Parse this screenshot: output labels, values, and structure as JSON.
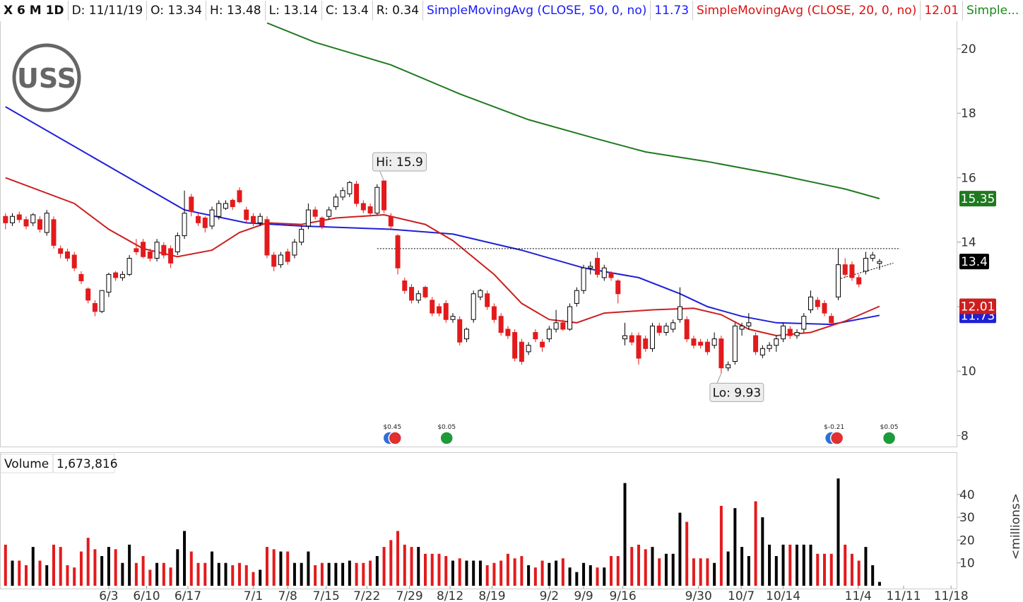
{
  "header": {
    "symbol": "X 6 M 1D",
    "date": "D: 11/11/19",
    "open": "O: 13.34",
    "high": "H: 13.48",
    "low": "L: 13.14",
    "close": "C: 13.4",
    "range": "R: 0.34"
  },
  "chart_data": [
    {
      "type": "candlestick",
      "logo": "USS",
      "xlim": [
        -0.8,
        138.3
      ],
      "ylim": [
        7.66,
        21.49
      ],
      "yticks": [
        8,
        10,
        12,
        14,
        16,
        18,
        20
      ],
      "up_color": "#000000",
      "down_color": "#e31a1c",
      "last_label": "13.4",
      "open": [
        14.8,
        14.6,
        14.85,
        14.7,
        14.6,
        14.7,
        14.3,
        14.7,
        13.8,
        13.7,
        13.6,
        13.0,
        12.55,
        12.1,
        11.85,
        12.45,
        13.05,
        12.9,
        13.0,
        13.8,
        14.0,
        13.7,
        13.5,
        13.9,
        13.8,
        13.7,
        14.2,
        15.4,
        14.8,
        14.75,
        14.5,
        14.8,
        15.05,
        15.3,
        15.6,
        15.0,
        14.8,
        14.6,
        14.7,
        13.6,
        13.3,
        13.7,
        13.6,
        14.0,
        14.5,
        15.0,
        14.75,
        14.8,
        15.1,
        15.4,
        15.5,
        15.8,
        15.2,
        15.1,
        14.9,
        15.9,
        14.8,
        14.2,
        12.8,
        12.6,
        12.2,
        12.6,
        12.2,
        12.0,
        12.1,
        11.6,
        11.6,
        11.0,
        11.6,
        12.3,
        12.4,
        12.0,
        11.7,
        11.3,
        11.2,
        10.9,
        10.6,
        11.2,
        10.9,
        11.0,
        11.3,
        11.5,
        11.3,
        12.1,
        12.5,
        13.2,
        13.5,
        12.9,
        13.05,
        12.8,
        11.0,
        11.1,
        11.1,
        11.0,
        10.7,
        11.4,
        11.2,
        11.3,
        11.6,
        11.6,
        11.0,
        10.9,
        10.9,
        10.8,
        11.0,
        10.1,
        10.3,
        11.3,
        11.4,
        11.1,
        10.5,
        10.7,
        10.8,
        11.0,
        11.3,
        11.1,
        11.3,
        11.9,
        12.2,
        12.1,
        11.7,
        12.3,
        13.3,
        13.3,
        12.9,
        13.1,
        13.5,
        13.34
      ],
      "high": [
        14.9,
        14.9,
        14.95,
        14.8,
        14.9,
        14.8,
        15.0,
        14.8,
        13.9,
        13.8,
        13.7,
        13.1,
        12.6,
        12.2,
        12.5,
        13.05,
        13.1,
        13.1,
        13.6,
        14.1,
        14.1,
        13.8,
        14.1,
        14.0,
        13.9,
        14.3,
        15.6,
        15.5,
        14.9,
        14.8,
        15.1,
        15.3,
        15.3,
        15.35,
        15.7,
        15.1,
        14.9,
        14.9,
        14.8,
        13.7,
        13.7,
        13.8,
        14.1,
        14.5,
        15.2,
        15.1,
        14.8,
        15.1,
        15.5,
        15.7,
        15.9,
        15.9,
        15.3,
        15.2,
        15.8,
        15.9,
        14.9,
        14.25,
        12.9,
        12.7,
        12.5,
        12.65,
        12.3,
        12.1,
        12.2,
        11.8,
        11.7,
        11.35,
        12.5,
        12.55,
        12.5,
        12.1,
        11.8,
        11.4,
        11.3,
        11.0,
        10.9,
        11.3,
        11.0,
        11.4,
        11.9,
        11.6,
        12.1,
        12.6,
        13.3,
        13.4,
        13.7,
        13.3,
        13.1,
        12.85,
        11.5,
        11.2,
        11.2,
        11.1,
        11.5,
        11.5,
        11.5,
        11.6,
        12.6,
        11.7,
        11.1,
        11.0,
        11.0,
        11.2,
        11.1,
        10.3,
        11.5,
        11.5,
        11.8,
        11.2,
        10.8,
        10.9,
        11.1,
        11.5,
        11.4,
        11.3,
        11.8,
        12.5,
        12.3,
        12.2,
        11.8,
        13.8,
        13.5,
        13.4,
        13.0,
        13.7,
        13.7,
        13.48
      ],
      "low": [
        14.4,
        14.5,
        14.6,
        14.4,
        14.5,
        14.3,
        14.2,
        13.8,
        13.5,
        13.4,
        13.1,
        12.7,
        12.1,
        11.7,
        11.8,
        12.3,
        12.8,
        12.8,
        12.95,
        13.6,
        13.5,
        13.4,
        13.4,
        13.5,
        13.2,
        13.6,
        14.1,
        14.8,
        14.5,
        14.3,
        14.4,
        14.7,
        15.0,
        15.0,
        15.2,
        14.6,
        14.5,
        14.5,
        13.5,
        13.1,
        13.2,
        13.3,
        13.5,
        13.9,
        14.4,
        14.7,
        14.4,
        14.7,
        15.0,
        15.3,
        15.4,
        15.1,
        14.9,
        14.8,
        14.85,
        14.9,
        14.4,
        13.0,
        12.4,
        12.1,
        12.1,
        12.25,
        11.7,
        11.7,
        11.5,
        11.5,
        10.8,
        10.9,
        11.5,
        12.2,
        11.9,
        11.5,
        11.1,
        11.0,
        10.3,
        10.2,
        10.5,
        10.9,
        10.6,
        10.9,
        11.2,
        11.25,
        11.25,
        12.0,
        12.4,
        13.0,
        12.9,
        12.8,
        12.8,
        12.1,
        10.8,
        10.8,
        10.2,
        10.6,
        10.6,
        11.1,
        11.1,
        11.2,
        11.5,
        10.9,
        10.7,
        10.7,
        10.5,
        10.7,
        9.93,
        10.0,
        10.2,
        11.1,
        11.3,
        10.5,
        10.4,
        10.6,
        10.6,
        10.9,
        11.0,
        11.0,
        11.2,
        11.8,
        11.9,
        11.7,
        11.4,
        12.2,
        12.9,
        12.8,
        12.6,
        13.0,
        13.4,
        13.14
      ],
      "close": [
        14.6,
        14.8,
        14.7,
        14.5,
        14.85,
        14.4,
        14.9,
        13.9,
        13.65,
        13.5,
        13.2,
        12.8,
        12.2,
        11.85,
        12.5,
        13.0,
        12.9,
        13.0,
        13.5,
        13.7,
        13.55,
        13.5,
        14.0,
        13.6,
        13.35,
        14.2,
        14.9,
        14.95,
        14.6,
        14.45,
        15.0,
        15.2,
        15.2,
        15.1,
        15.25,
        14.7,
        14.6,
        14.8,
        13.6,
        13.25,
        13.6,
        13.4,
        14.0,
        14.4,
        15.0,
        14.8,
        14.5,
        15.0,
        15.4,
        15.6,
        15.85,
        15.2,
        15.0,
        14.9,
        15.7,
        15.0,
        14.5,
        13.2,
        12.5,
        12.2,
        12.4,
        12.3,
        11.8,
        11.8,
        11.6,
        11.7,
        10.9,
        11.3,
        12.4,
        12.5,
        12.0,
        11.6,
        11.2,
        11.1,
        10.4,
        10.3,
        10.8,
        11.0,
        10.75,
        11.3,
        11.5,
        11.3,
        12.0,
        12.5,
        13.2,
        13.25,
        13.0,
        13.2,
        12.9,
        12.4,
        11.1,
        10.9,
        10.4,
        10.7,
        11.4,
        11.2,
        11.4,
        11.5,
        12.0,
        11.0,
        10.8,
        10.8,
        10.6,
        11.0,
        10.1,
        10.2,
        11.4,
        11.4,
        11.5,
        10.6,
        10.7,
        10.8,
        11.0,
        11.4,
        11.1,
        11.2,
        11.7,
        12.3,
        12.0,
        11.8,
        11.5,
        13.3,
        13.0,
        12.9,
        12.7,
        13.5,
        13.6,
        13.4
      ],
      "series": [
        {
          "name": "SimpleMovingAvg (CLOSE, 50, 0, no)",
          "color": "#1f1fd6",
          "value_label": "11.73",
          "x": [
            0,
            26,
            35,
            43,
            56,
            65,
            75,
            84,
            92,
            98,
            102,
            107,
            112,
            120,
            127
          ],
          "values": [
            18.2,
            15.0,
            14.6,
            14.5,
            14.4,
            14.25,
            13.75,
            13.2,
            12.9,
            12.4,
            12.0,
            11.7,
            11.5,
            11.45,
            11.73
          ]
        },
        {
          "name": "SimpleMovingAvg (CLOSE, 20, 0, no)",
          "color": "#cc1f1f",
          "value_label": "12.01",
          "x": [
            0,
            10,
            15,
            20,
            25,
            30,
            34,
            38,
            43,
            48,
            55,
            61,
            65,
            71,
            75,
            79,
            83,
            87,
            94,
            100,
            104,
            108,
            112,
            117,
            122,
            127
          ],
          "values": [
            16.0,
            15.2,
            14.4,
            13.8,
            13.55,
            13.75,
            14.3,
            14.6,
            14.55,
            14.75,
            14.85,
            14.55,
            14.05,
            13.0,
            12.1,
            11.6,
            11.5,
            11.8,
            11.9,
            11.95,
            11.75,
            11.3,
            11.1,
            11.2,
            11.55,
            12.01
          ]
        },
        {
          "name": "Simple...",
          "color": "#1f7a1f",
          "value_label": "15.35",
          "x": [
            38,
            45,
            56,
            66,
            76,
            86,
            93,
            102,
            112,
            122,
            127
          ],
          "values": [
            20.8,
            20.2,
            19.5,
            18.6,
            17.8,
            17.2,
            16.8,
            16.5,
            16.1,
            15.65,
            15.35
          ]
        }
      ],
      "annotations": [
        {
          "text": "Hi: 15.9",
          "x": 55,
          "y": 15.9
        },
        {
          "text": "Lo: 9.93",
          "x": 104,
          "y": 9.93
        }
      ],
      "resistance": 13.8,
      "resistance_x": [
        54,
        130
      ],
      "trendline": {
        "x": [
          121,
          129
        ],
        "y": [
          12.85,
          13.35
        ]
      },
      "events": [
        {
          "label": "$0.45",
          "x": 56.2,
          "icons": [
            "#2f6fd6",
            "#e03030"
          ]
        },
        {
          "label": "$0.05",
          "x": 64.1,
          "icons": [
            "#1d9a3a"
          ]
        },
        {
          "label": "$-0.21",
          "x": 120.4,
          "icons": [
            "#2f6fd6",
            "#e03030"
          ]
        },
        {
          "label": "$0.05",
          "x": 128.4,
          "icons": [
            "#1d9a3a"
          ]
        }
      ]
    },
    {
      "type": "volume",
      "title": "Volume",
      "legend_value": "1,673,816",
      "ylabel": "<millions>",
      "xlim": [
        -0.8,
        138.3
      ],
      "ylim": [
        0,
        58.2
      ],
      "yticks": [
        10,
        20,
        30,
        40
      ],
      "xticks": [
        {
          "value": 15,
          "label": "6/3"
        },
        {
          "value": 20.5,
          "label": "6/10"
        },
        {
          "value": 26.5,
          "label": "6/17"
        },
        {
          "value": 36,
          "label": "7/1"
        },
        {
          "value": 41,
          "label": "7/8"
        },
        {
          "value": 46.6,
          "label": "7/15"
        },
        {
          "value": 52.5,
          "label": "7/22"
        },
        {
          "value": 58.7,
          "label": "7/29"
        },
        {
          "value": 64.6,
          "label": "8/12"
        },
        {
          "value": 70.7,
          "label": "8/19"
        },
        {
          "value": 79,
          "label": "9/2"
        },
        {
          "value": 84,
          "label": "9/9"
        },
        {
          "value": 89.7,
          "label": "9/16"
        },
        {
          "value": 100.7,
          "label": "9/30"
        },
        {
          "value": 106.9,
          "label": "10/7"
        },
        {
          "value": 113,
          "label": "10/14"
        },
        {
          "value": 123.9,
          "label": "11/4"
        },
        {
          "value": 130.5,
          "label": "11/11"
        },
        {
          "value": 137.4,
          "label": "11/18"
        }
      ],
      "values": [
        18,
        11,
        11,
        9,
        17,
        11,
        9,
        18,
        17,
        9,
        8,
        15,
        21,
        16,
        13,
        17,
        16,
        10,
        18,
        10,
        13,
        7,
        10,
        10,
        8,
        16,
        24,
        15,
        10,
        10,
        15,
        10,
        10,
        9,
        10,
        9,
        6,
        7,
        17,
        16,
        15,
        15,
        10,
        10,
        15,
        9,
        10,
        10,
        10,
        10,
        11,
        10,
        10,
        11,
        13,
        17,
        20,
        24,
        18,
        17,
        17,
        14,
        14,
        14,
        13,
        11,
        12,
        11,
        11,
        11,
        9,
        10,
        11,
        14,
        12,
        13,
        9,
        8,
        11,
        10,
        11,
        12,
        8,
        6,
        10,
        9,
        8,
        8,
        13,
        13,
        45,
        17,
        18,
        16,
        17,
        12,
        14,
        14,
        32,
        28,
        12,
        12,
        12,
        10,
        35,
        15,
        34,
        17,
        13,
        37,
        30,
        18,
        13,
        18,
        18,
        18,
        18,
        18,
        14,
        14,
        14,
        47,
        18,
        14,
        11,
        17,
        9,
        1.673816
      ]
    }
  ]
}
